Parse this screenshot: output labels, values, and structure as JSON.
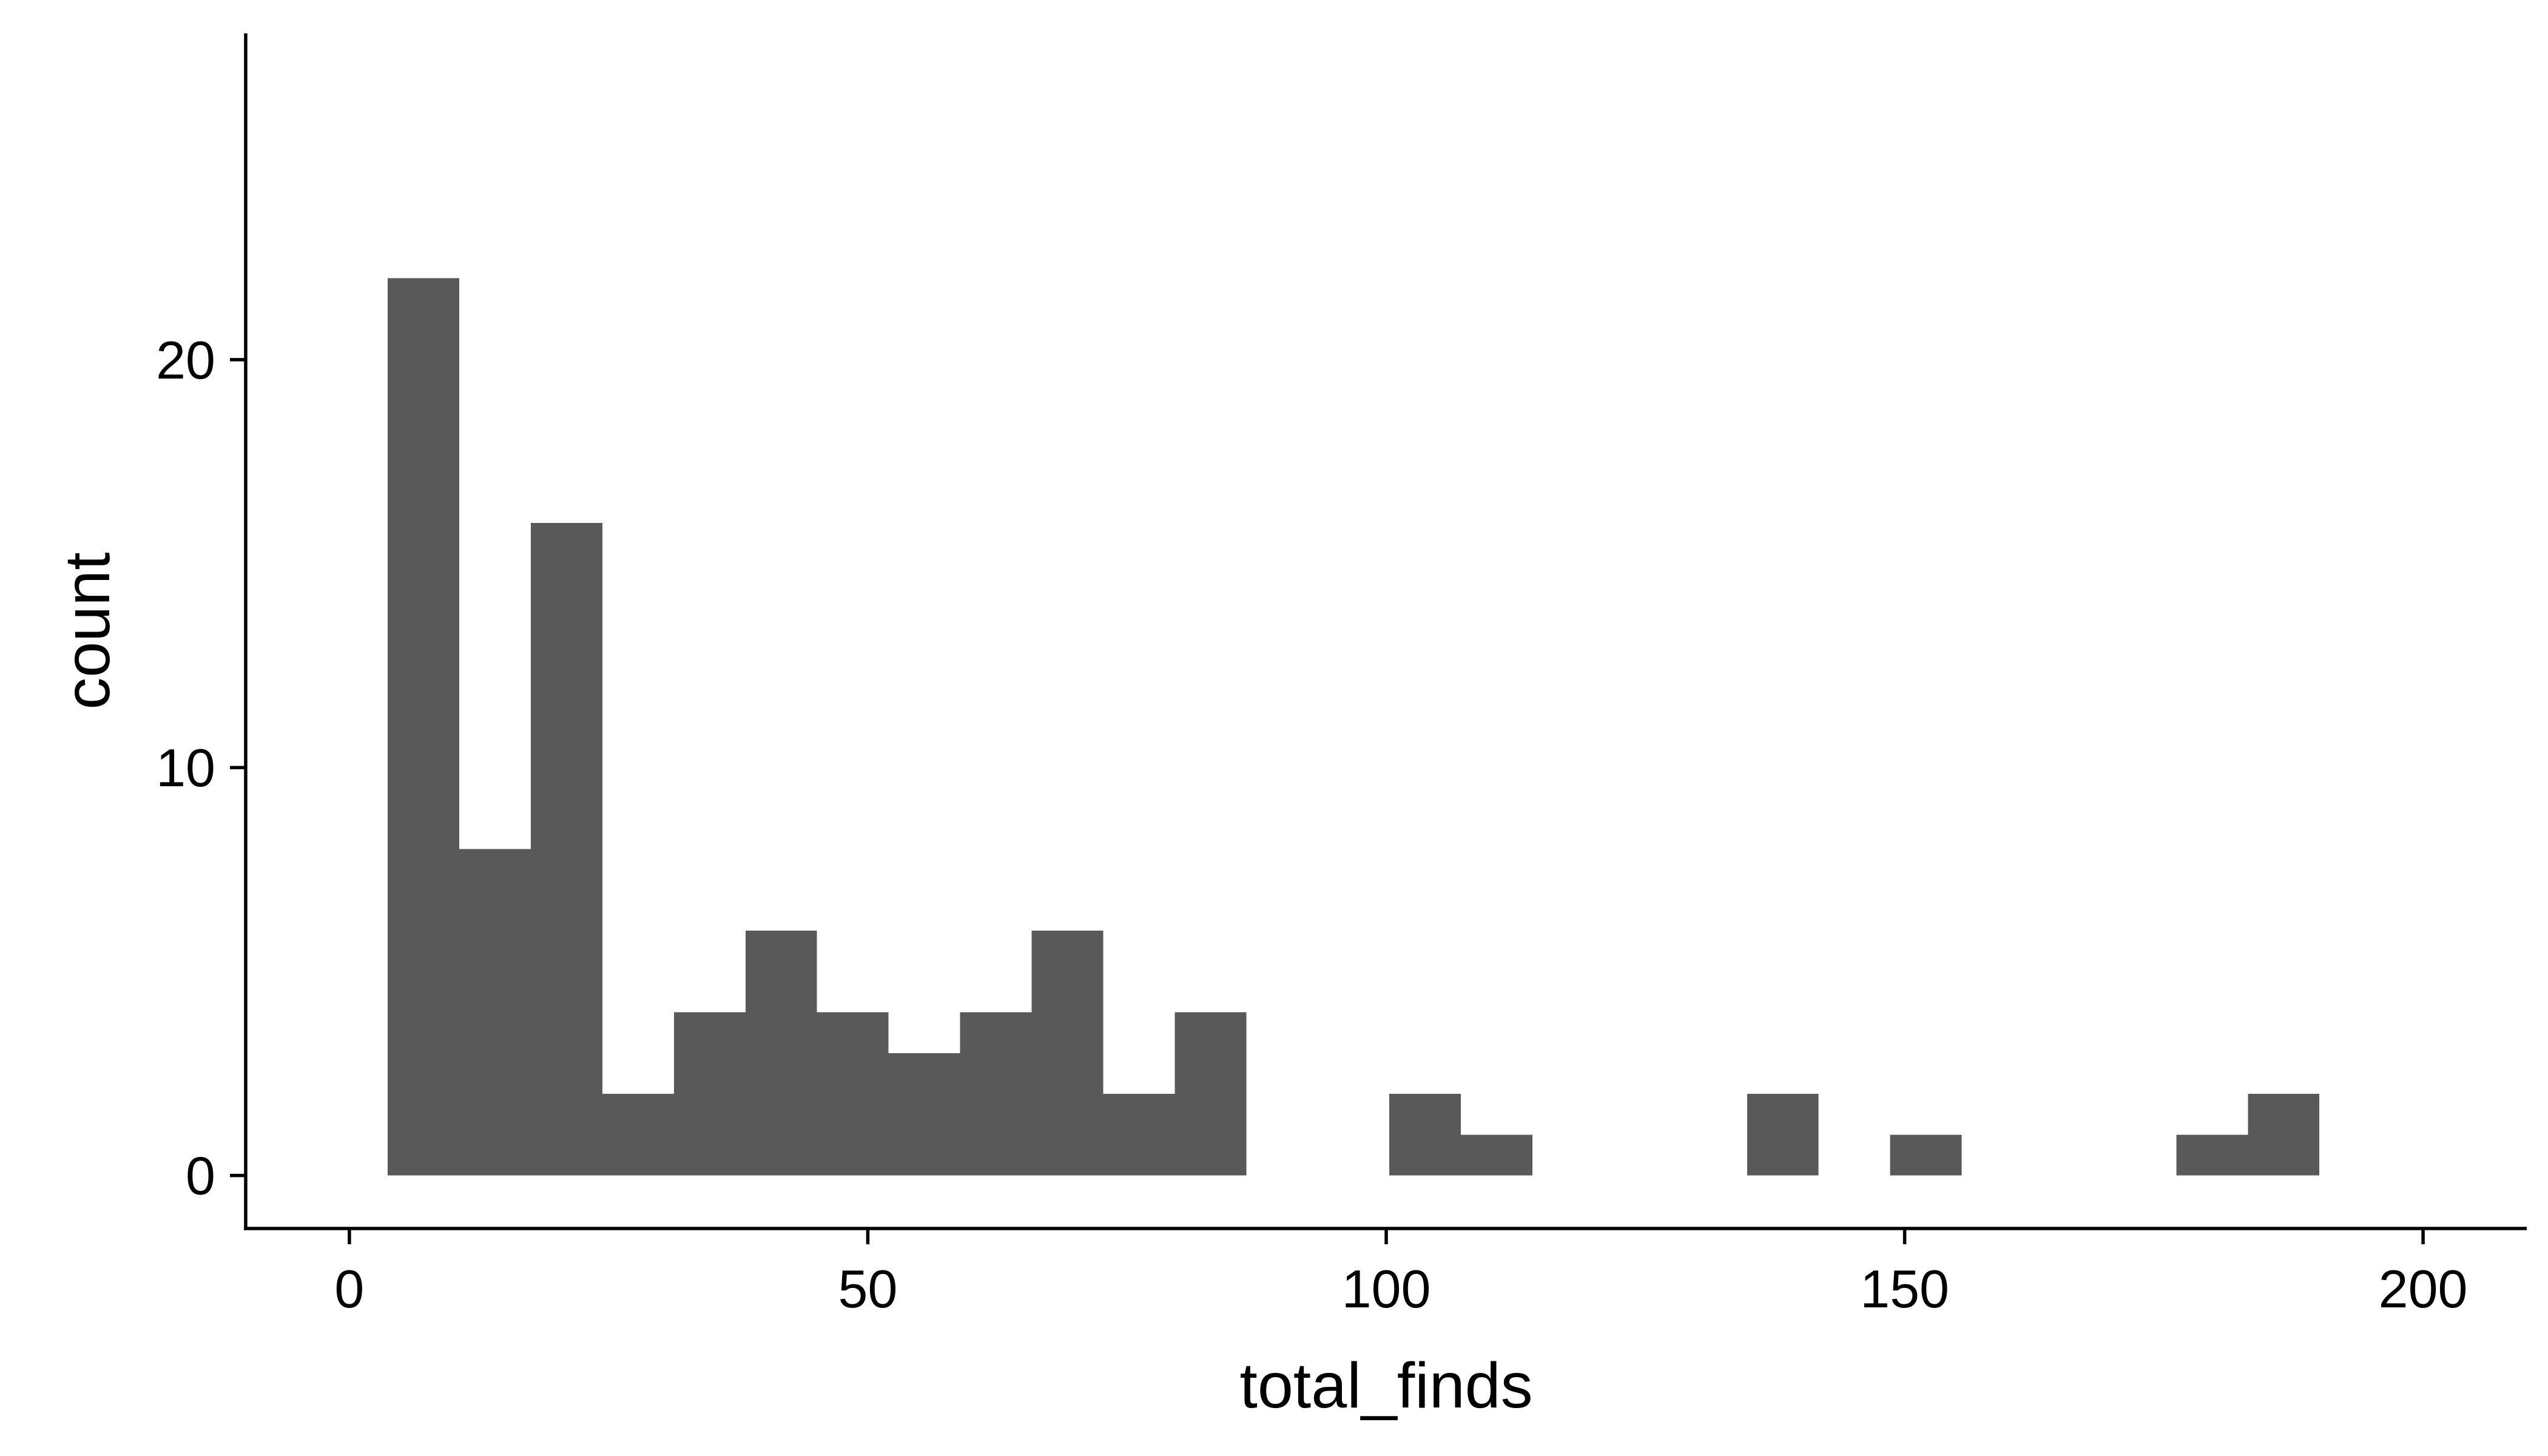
{
  "chart_data": {
    "type": "bar",
    "subtype": "histogram",
    "xlabel": "total_finds",
    "ylabel": "count",
    "xlim": [
      -10,
      210
    ],
    "ylim": [
      -1.3,
      28
    ],
    "x_ticks": [
      0,
      50,
      100,
      150,
      200
    ],
    "x_tick_labels": [
      "0",
      "50",
      "100",
      "150",
      "200"
    ],
    "y_ticks": [
      0,
      10,
      20
    ],
    "y_tick_labels": [
      "0",
      "10",
      "20"
    ],
    "bar_color": "#595959",
    "grid": false,
    "bins": [
      {
        "x0": 3.7,
        "x1": 10.6,
        "count": 22
      },
      {
        "x0": 10.6,
        "x1": 17.5,
        "count": 8
      },
      {
        "x0": 17.5,
        "x1": 24.4,
        "count": 16
      },
      {
        "x0": 24.4,
        "x1": 31.3,
        "count": 2
      },
      {
        "x0": 31.3,
        "x1": 38.2,
        "count": 4
      },
      {
        "x0": 38.2,
        "x1": 45.1,
        "count": 6
      },
      {
        "x0": 45.1,
        "x1": 52.0,
        "count": 4
      },
      {
        "x0": 52.0,
        "x1": 58.9,
        "count": 3
      },
      {
        "x0": 58.9,
        "x1": 65.8,
        "count": 4
      },
      {
        "x0": 65.8,
        "x1": 72.7,
        "count": 6
      },
      {
        "x0": 72.7,
        "x1": 79.6,
        "count": 2
      },
      {
        "x0": 79.6,
        "x1": 86.5,
        "count": 4
      },
      {
        "x0": 86.5,
        "x1": 93.4,
        "count": 0
      },
      {
        "x0": 93.4,
        "x1": 100.3,
        "count": 0
      },
      {
        "x0": 100.3,
        "x1": 107.2,
        "count": 2
      },
      {
        "x0": 107.2,
        "x1": 114.1,
        "count": 1
      },
      {
        "x0": 114.1,
        "x1": 121.0,
        "count": 0
      },
      {
        "x0": 121.0,
        "x1": 127.9,
        "count": 0
      },
      {
        "x0": 127.9,
        "x1": 134.8,
        "count": 0
      },
      {
        "x0": 134.8,
        "x1": 141.7,
        "count": 2
      },
      {
        "x0": 141.7,
        "x1": 148.6,
        "count": 0
      },
      {
        "x0": 148.6,
        "x1": 155.5,
        "count": 1
      },
      {
        "x0": 155.5,
        "x1": 162.4,
        "count": 0
      },
      {
        "x0": 162.4,
        "x1": 169.3,
        "count": 0
      },
      {
        "x0": 169.3,
        "x1": 176.2,
        "count": 0
      },
      {
        "x0": 176.2,
        "x1": 183.1,
        "count": 1
      },
      {
        "x0": 183.1,
        "x1": 190.0,
        "count": 2
      }
    ]
  }
}
